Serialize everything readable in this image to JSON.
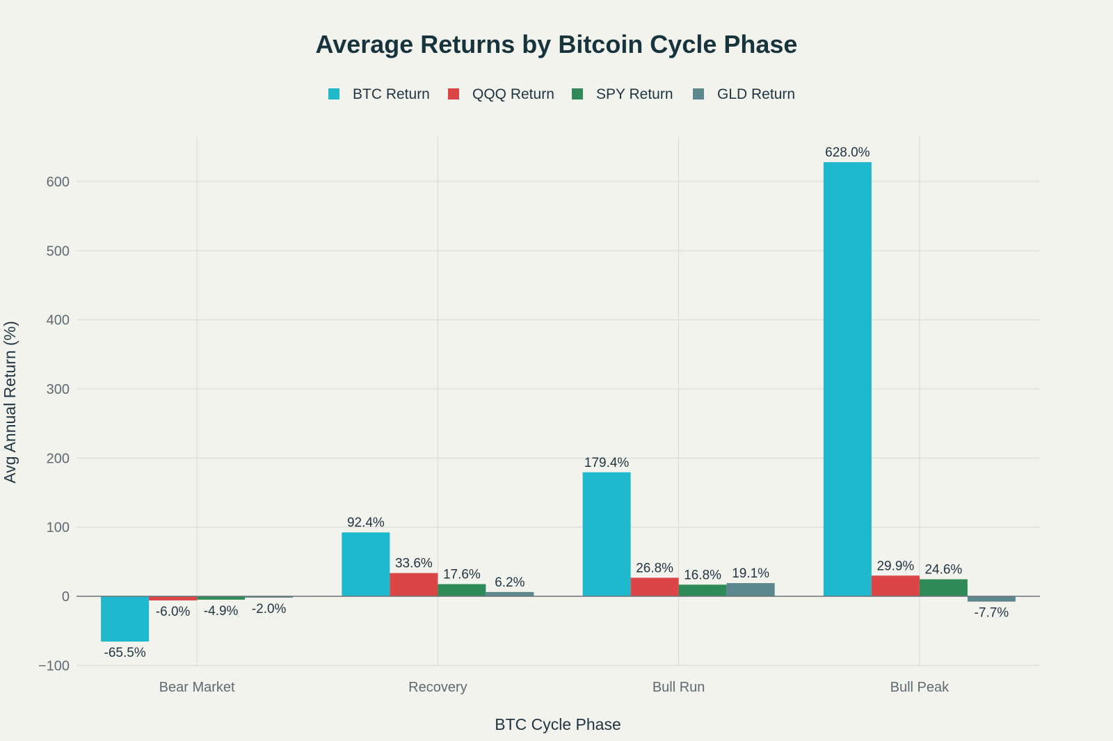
{
  "chart_data": {
    "type": "bar",
    "title": "Average Returns by Bitcoin Cycle Phase",
    "xlabel": "BTC Cycle Phase",
    "ylabel": "Avg Annual Return (%)",
    "ylim": [
      -100,
      650
    ],
    "yticks": [
      -100,
      0,
      100,
      200,
      300,
      400,
      500,
      600
    ],
    "ytick_labels": [
      "−100",
      "0",
      "100",
      "200",
      "300",
      "400",
      "500",
      "600"
    ],
    "grid": true,
    "legend_position": "top-center",
    "categories": [
      "Bear Market",
      "Recovery",
      "Bull Run",
      "Bull Peak"
    ],
    "series": [
      {
        "name": "BTC Return",
        "color": "#1fb8cd",
        "values": [
          -65.5,
          92.4,
          179.4,
          628.0
        ],
        "labels": [
          "-65.5%",
          "92.4%",
          "179.4%",
          "628.0%"
        ]
      },
      {
        "name": "QQQ Return",
        "color": "#db4545",
        "values": [
          -6.0,
          33.6,
          26.8,
          29.9
        ],
        "labels": [
          "-6.0%",
          "33.6%",
          "26.8%",
          "29.9%"
        ]
      },
      {
        "name": "SPY Return",
        "color": "#2e8b57",
        "values": [
          -4.9,
          17.6,
          16.8,
          24.6
        ],
        "labels": [
          "-4.9%",
          "17.6%",
          "16.8%",
          "24.6%"
        ]
      },
      {
        "name": "GLD Return",
        "color": "#5d878f",
        "values": [
          -2.0,
          6.2,
          19.1,
          -7.7
        ],
        "labels": [
          "-2.0%",
          "6.2%",
          "19.1%",
          "-7.7%"
        ]
      }
    ]
  }
}
